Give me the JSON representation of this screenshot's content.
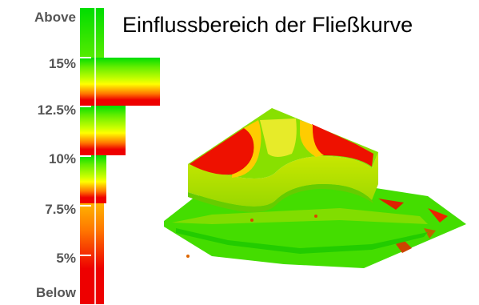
{
  "title": "Einflussbereich der Fließkurve",
  "legend": {
    "labels": [
      "Above",
      "15%",
      "12.5%",
      "10%",
      "7.5%",
      "5%",
      "Below"
    ]
  },
  "colors": {
    "high": "#00dd00",
    "mid_high": "#88ee00",
    "mid": "#ffff00",
    "low": "#ff8800",
    "very_low": "#ee0000",
    "background": "#ffffff"
  },
  "icons": {
    "scale": "color-scale-bar",
    "model": "3d-sheet-metal-part"
  }
}
